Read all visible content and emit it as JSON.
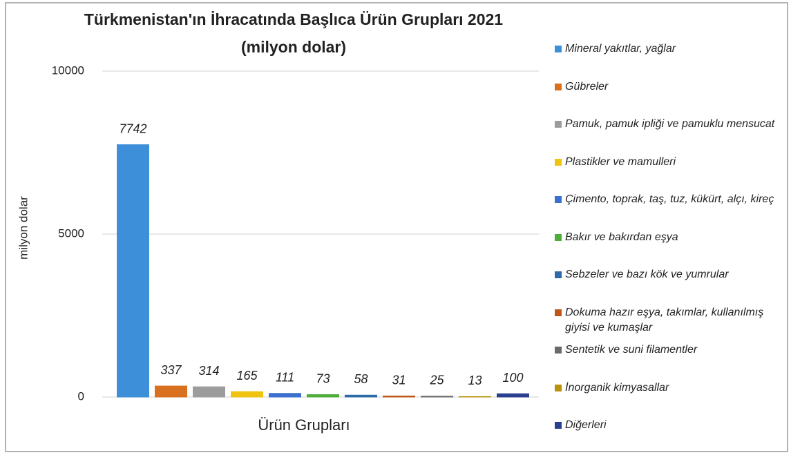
{
  "chart_data": {
    "type": "bar",
    "title": "Türkmenistan'ın İhracatında Başlıca Ürün Grupları 2021",
    "subtitle": "(milyon dolar)",
    "y_label": "milyon dolar",
    "x_label": "Ürün Grupları",
    "categories": [
      "Mineral yakıtlar, yağlar",
      "Gübreler",
      "Pamuk, pamuk ipliği ve pamuklu mensucat",
      "Plastikler ve mamulleri",
      "Çimento, toprak, taş, tuz, kükürt, alçı, kireç",
      "Bakır ve bakırdan eşya",
      "Sebzeler ve bazı kök ve yumrular",
      "Dokuma hazır eşya, takımlar, kullanılmış giyisi ve kumaşlar",
      "Sentetik ve suni filamentler",
      "İnorganik kimyasallar",
      "Diğerleri"
    ],
    "values": [
      7742,
      337,
      314,
      165,
      111,
      73,
      58,
      31,
      25,
      13,
      100
    ],
    "colors": [
      "#3c8fd8",
      "#d8701f",
      "#9c9c9c",
      "#f0c30e",
      "#3b6fd0",
      "#4fae3a",
      "#2f6aa8",
      "#c0561a",
      "#6a6a6a",
      "#b8920c",
      "#2a3f8f"
    ],
    "ylim": [
      0,
      10000
    ],
    "yticks": [
      0,
      5000,
      10000
    ],
    "grid": true
  }
}
